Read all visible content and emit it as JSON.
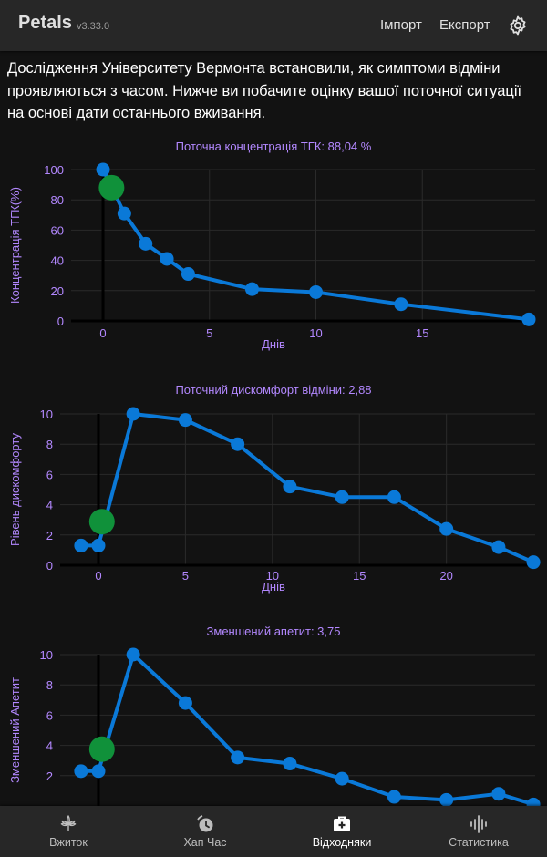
{
  "header": {
    "app_name": "Petals",
    "version": "v3.33.0",
    "import_label": "Імпорт",
    "export_label": "Експорт",
    "settings_icon": "gear-icon"
  },
  "intro_text": "Дослідження Університету Вермонта встановили, як симптоми відміни проявляються з часом. Нижче ви побачите оцінку вашої поточної ситуації на основі дати останнього вживання.",
  "colors": {
    "accent": "#b388ff",
    "line": "#0a79d8",
    "current_marker": "#10913a",
    "background": "#121212",
    "bar": "#272727"
  },
  "chart_data": [
    {
      "type": "line",
      "title": "Поточна концентрація ТГК: 88,04 %",
      "xlabel": "Днів",
      "ylabel": "Концентрація ТГК(%)",
      "xlim": [
        -1.5,
        20.3
      ],
      "ylim": [
        0,
        100
      ],
      "xticks": [
        0,
        5,
        10,
        15
      ],
      "yticks": [
        0,
        20,
        40,
        60,
        80,
        100
      ],
      "x": [
        0,
        1,
        2,
        3,
        4,
        7,
        10,
        14,
        20
      ],
      "y": [
        100,
        71,
        51,
        41,
        31,
        21,
        19,
        11,
        1
      ],
      "current": {
        "x": 0.4,
        "y": 88.04
      }
    },
    {
      "type": "line",
      "title": "Поточний дискомфорт відміни: 2,88",
      "xlabel": "Днів",
      "ylabel": "Рівень дискомфорту",
      "xlim": [
        -2.2,
        25.1
      ],
      "ylim": [
        0,
        10
      ],
      "xticks": [
        0,
        5,
        10,
        15,
        20
      ],
      "yticks": [
        0,
        2,
        4,
        6,
        8,
        10
      ],
      "x": [
        -1,
        0,
        2,
        5,
        8,
        11,
        14,
        17,
        20,
        23,
        25
      ],
      "y": [
        1.3,
        1.3,
        10,
        9.6,
        8,
        5.2,
        4.5,
        4.5,
        2.4,
        1.2,
        0.2
      ],
      "current": {
        "x": 0.2,
        "y": 2.88
      }
    },
    {
      "type": "line",
      "title": "Зменшений апетит: 3,75",
      "xlabel": "",
      "ylabel": "Зменшений Апетит",
      "xlim": [
        -2.2,
        25.1
      ],
      "ylim": [
        0,
        10
      ],
      "xticks": [],
      "yticks": [
        2,
        4,
        6,
        8,
        10
      ],
      "x": [
        -1,
        0,
        2,
        5,
        8,
        11,
        14,
        17,
        20,
        23,
        25
      ],
      "y": [
        2.3,
        2.3,
        10,
        6.8,
        3.2,
        2.8,
        1.8,
        0.6,
        0.4,
        0.8,
        0.1
      ],
      "current": {
        "x": 0.2,
        "y": 3.75
      }
    }
  ],
  "nav": {
    "items": [
      {
        "label": "Вжиток",
        "icon": "cannabis-leaf-icon"
      },
      {
        "label": "Хап Час",
        "icon": "timer-icon"
      },
      {
        "label": "Відходняки",
        "icon": "medical-bag-icon"
      },
      {
        "label": "Статистика",
        "icon": "waveform-icon"
      }
    ],
    "active": "Відходняки"
  }
}
